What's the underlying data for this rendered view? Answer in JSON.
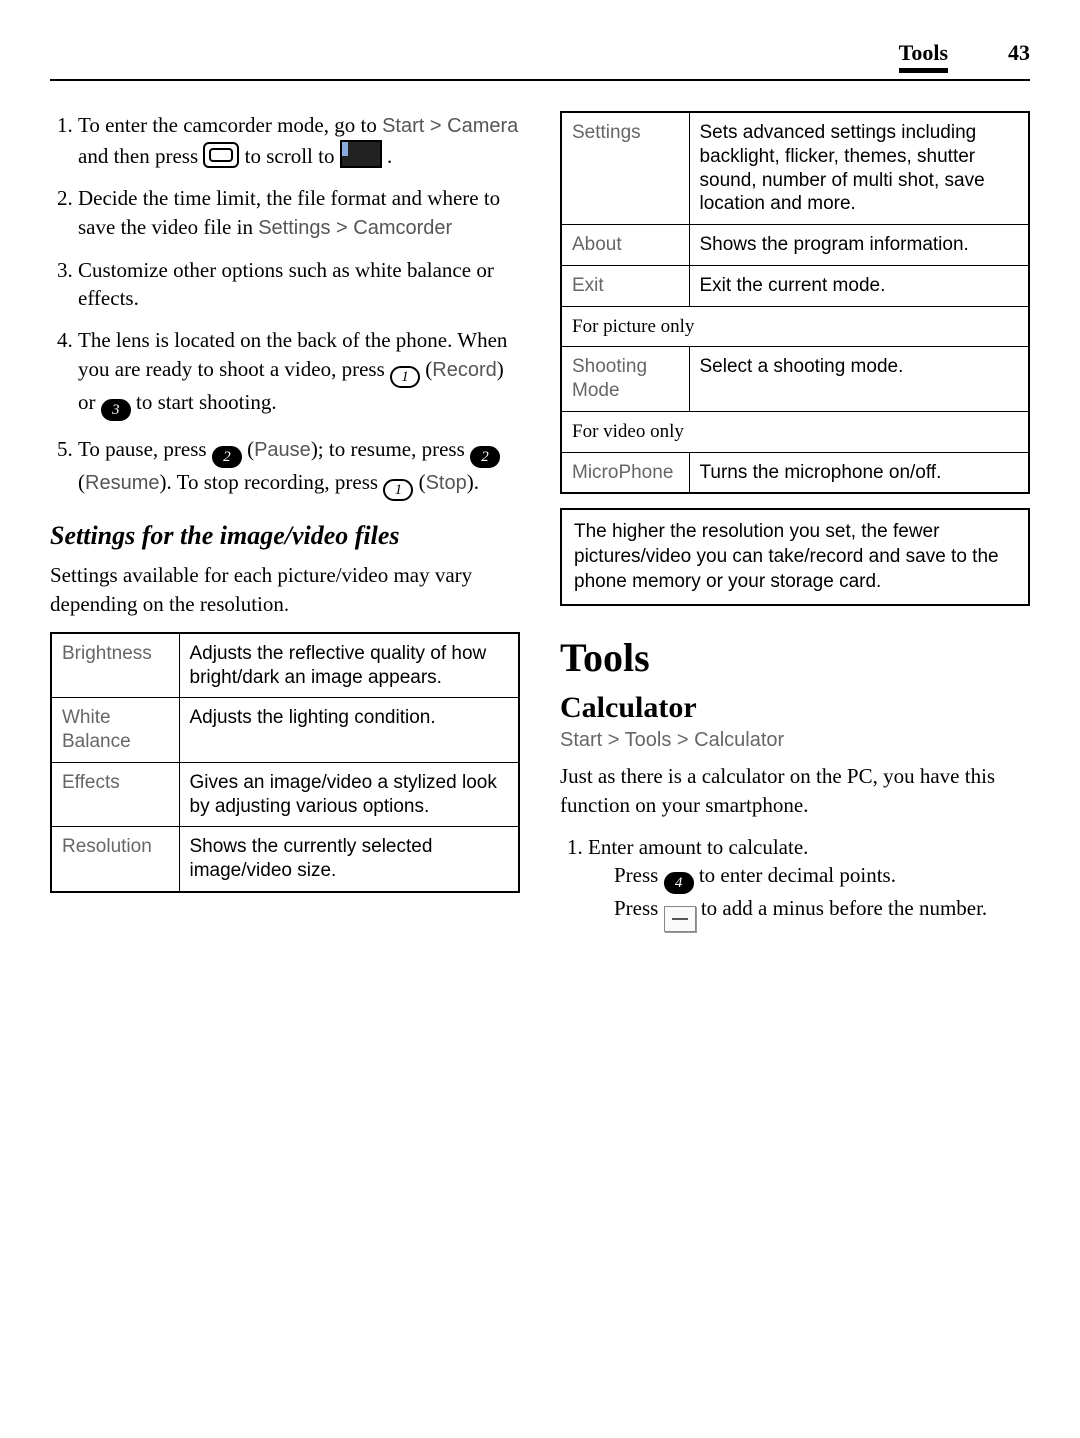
{
  "header": {
    "section": "Tools",
    "page_number": "43"
  },
  "left": {
    "steps": [
      {
        "pre": "To enter the camcorder mode, go to ",
        "path": "Start > Camera",
        "mid1": " and then press ",
        "icon1": "thumb",
        "mid2": " to scroll to ",
        "icon2": "flag",
        "post": "."
      },
      {
        "text1": "Decide the time limit, the file format and where to save the video file in ",
        "path": "Settings > Camcorder"
      },
      {
        "plain": "Customize other options such as white balance or effects."
      },
      {
        "a": "The lens is located on the back of the phone. When you are ready to shoot a video, press ",
        "b_icon": "1",
        "b_icon_solid": false,
        "c": " (",
        "c_label": "Record",
        "d": ") or ",
        "e_icon": "3",
        "e_icon_solid": true,
        "f": " to start shooting."
      },
      {
        "a": "To pause, press ",
        "b_icon": "2",
        "b_icon_solid": true,
        "c": " (",
        "c_label": "Pause",
        "d": "); to resume, press ",
        "e_icon": "2",
        "e_icon_solid": true,
        "f": " (",
        "f_label": "Resume",
        "g": "). To stop recording, press ",
        "h_icon": "1",
        "h_icon_solid": false,
        "i": " (",
        "i_label": "Stop",
        "j": ")."
      }
    ],
    "settings_heading": "Settings for the image/video files",
    "settings_intro": "Settings available for each picture/video may vary depending on the resolution.",
    "table": [
      {
        "key": "Brightness",
        "val": "Adjusts the reflective quality of how bright/dark an image appears."
      },
      {
        "key": "White Balance",
        "val": "Adjusts the lighting condition."
      },
      {
        "key": "Effects",
        "val": "Gives an image/video a stylized look by adjusting various options."
      },
      {
        "key": "Resolution",
        "val": "Shows the currently selected image/video size."
      }
    ]
  },
  "right": {
    "table": [
      {
        "key": "Settings",
        "val": "Sets advanced settings including backlight, flicker, themes, shutter sound, number of multi shot, save location and more."
      },
      {
        "key": "About",
        "val": "Shows the program information."
      },
      {
        "key": "Exit",
        "val": "Exit the current mode."
      },
      {
        "full": "For picture only"
      },
      {
        "key": "Shooting Mode",
        "val": "Select a shooting mode."
      },
      {
        "full": "For video only"
      },
      {
        "key": "MicroPhone",
        "val": "Turns the microphone on/off."
      }
    ],
    "note": "The higher the resolution you set, the fewer pictures/video you can take/record and save to the phone memory or your storage card.",
    "tools_heading": "Tools",
    "calc_heading": "Calculator",
    "calc_path": "Start > Tools > Calculator",
    "calc_body": "Just as there is a calculator on the PC, you have this function on your smartphone.",
    "calc_step1": "Enter amount to calculate.",
    "calc_press1_a": "Press ",
    "calc_press1_icon": "4",
    "calc_press1_b": " to enter decimal points.",
    "calc_press2_a": "Press ",
    "calc_press2_b": " to add a minus before the number."
  },
  "colors": {
    "text": "#000000",
    "muted": "#666666",
    "border": "#000000",
    "background": "#ffffff"
  },
  "typography": {
    "body_family": "Georgia",
    "sans_family": "Arial",
    "body_size_pt": 16,
    "heading_size_pt": 30
  }
}
